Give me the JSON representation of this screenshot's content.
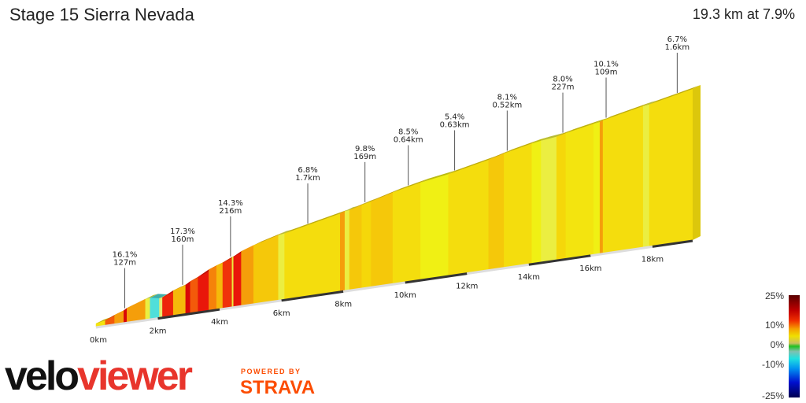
{
  "header": {
    "title": "Stage 15 Sierra Nevada",
    "summary": "19.3 km at 7.9%"
  },
  "branding": {
    "logo_velo": "velo",
    "logo_viewer": "viewer",
    "powered_by": "POWERED BY",
    "strava": "STRAVA"
  },
  "chart_data": {
    "type": "area",
    "title": "Stage 15 Sierra Nevada",
    "distance_km": 19.3,
    "avg_gradient_pct": 7.9,
    "x_ticks": [
      "0km",
      "2km",
      "4km",
      "6km",
      "8km",
      "10km",
      "12km",
      "14km",
      "16km",
      "18km"
    ],
    "segments": [
      {
        "from": 0,
        "to": 0.3,
        "gradient": 5
      },
      {
        "from": 0.3,
        "to": 0.6,
        "gradient": 11
      },
      {
        "from": 0.6,
        "to": 0.9,
        "gradient": 9
      },
      {
        "from": 0.9,
        "to": 1.0,
        "gradient": 16
      },
      {
        "from": 1.0,
        "to": 1.6,
        "gradient": 9
      },
      {
        "from": 1.6,
        "to": 1.75,
        "gradient": 3
      },
      {
        "from": 1.75,
        "to": 2.05,
        "gradient": -5
      },
      {
        "from": 2.05,
        "to": 2.15,
        "gradient": 2
      },
      {
        "from": 2.15,
        "to": 2.5,
        "gradient": 13
      },
      {
        "from": 2.5,
        "to": 2.9,
        "gradient": 8
      },
      {
        "from": 2.9,
        "to": 3.05,
        "gradient": 16
      },
      {
        "from": 3.05,
        "to": 3.3,
        "gradient": 11
      },
      {
        "from": 3.3,
        "to": 3.65,
        "gradient": 14
      },
      {
        "from": 3.65,
        "to": 3.9,
        "gradient": 10
      },
      {
        "from": 3.9,
        "to": 4.1,
        "gradient": 8
      },
      {
        "from": 4.1,
        "to": 4.4,
        "gradient": 12
      },
      {
        "from": 4.4,
        "to": 4.45,
        "gradient": 3
      },
      {
        "from": 4.45,
        "to": 4.7,
        "gradient": 14
      },
      {
        "from": 4.7,
        "to": 5.1,
        "gradient": 9
      },
      {
        "from": 5.1,
        "to": 5.9,
        "gradient": 7
      },
      {
        "from": 5.9,
        "to": 6.1,
        "gradient": 3
      },
      {
        "from": 6.1,
        "to": 7.9,
        "gradient": 5.5
      },
      {
        "from": 7.9,
        "to": 8.05,
        "gradient": 9
      },
      {
        "from": 8.05,
        "to": 8.2,
        "gradient": 3
      },
      {
        "from": 8.2,
        "to": 8.6,
        "gradient": 7
      },
      {
        "from": 8.6,
        "to": 8.9,
        "gradient": 6
      },
      {
        "from": 8.9,
        "to": 9.6,
        "gradient": 7
      },
      {
        "from": 9.6,
        "to": 10.5,
        "gradient": 5.5
      },
      {
        "from": 10.5,
        "to": 11.4,
        "gradient": 4
      },
      {
        "from": 11.4,
        "to": 12.7,
        "gradient": 5.5
      },
      {
        "from": 12.7,
        "to": 13.2,
        "gradient": 7
      },
      {
        "from": 13.2,
        "to": 14.1,
        "gradient": 5.5
      },
      {
        "from": 14.1,
        "to": 14.4,
        "gradient": 4
      },
      {
        "from": 14.4,
        "to": 14.9,
        "gradient": 3
      },
      {
        "from": 14.9,
        "to": 15.2,
        "gradient": 6
      },
      {
        "from": 15.2,
        "to": 16.1,
        "gradient": 5
      },
      {
        "from": 16.1,
        "to": 16.3,
        "gradient": 4
      },
      {
        "from": 16.3,
        "to": 16.4,
        "gradient": 9
      },
      {
        "from": 16.4,
        "to": 17.7,
        "gradient": 5.5
      },
      {
        "from": 17.7,
        "to": 17.9,
        "gradient": 3
      },
      {
        "from": 17.9,
        "to": 19.3,
        "gradient": 5.5
      }
    ],
    "annotations": [
      {
        "km": 0.93,
        "gradient": "16.1%",
        "length": "127m"
      },
      {
        "km": 2.8,
        "gradient": "17.3%",
        "length": "160m"
      },
      {
        "km": 4.35,
        "gradient": "14.3%",
        "length": "216m"
      },
      {
        "km": 6.85,
        "gradient": "6.8%",
        "length": "1.7km"
      },
      {
        "km": 8.7,
        "gradient": "9.8%",
        "length": "169m"
      },
      {
        "km": 10.1,
        "gradient": "8.5%",
        "length": "0.64km"
      },
      {
        "km": 11.6,
        "gradient": "5.4%",
        "length": "0.63km"
      },
      {
        "km": 13.3,
        "gradient": "8.1%",
        "length": "0.52km"
      },
      {
        "km": 15.1,
        "gradient": "8.0%",
        "length": "227m"
      },
      {
        "km": 16.5,
        "gradient": "10.1%",
        "length": "109m"
      },
      {
        "km": 18.8,
        "gradient": "6.7%",
        "length": "1.6km"
      }
    ],
    "legend": {
      "title": "",
      "ticks": [
        "25%",
        "10%",
        "0%",
        "-10%",
        "-25%"
      ],
      "range": [
        -25,
        25
      ]
    }
  }
}
